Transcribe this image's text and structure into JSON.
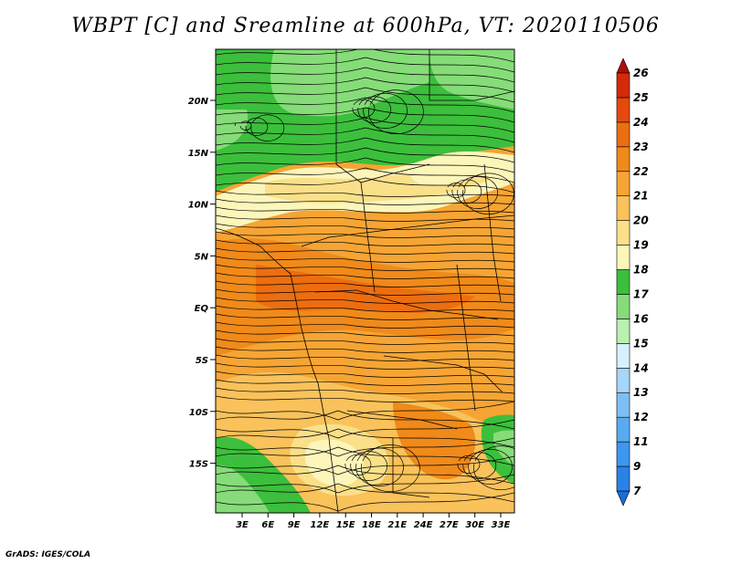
{
  "title": "WBPT [C] and Sreamline at 600hPa, VT: 2020110506",
  "footer": "GrADS: IGES/COLA",
  "map": {
    "lat_labels": [
      "20N",
      "15N",
      "10N",
      "5N",
      "EQ",
      "5S",
      "10S",
      "15S"
    ],
    "lon_labels": [
      "3E",
      "6E",
      "9E",
      "12E",
      "15E",
      "18E",
      "21E",
      "24E",
      "27E",
      "30E",
      "33E"
    ]
  },
  "colorbar": {
    "levels": [
      "7",
      "9",
      "11",
      "12",
      "13",
      "14",
      "15",
      "16",
      "17",
      "18",
      "19",
      "20",
      "21",
      "22",
      "23",
      "24",
      "25",
      "26"
    ],
    "colors": [
      "#1c6cd8",
      "#2a82e6",
      "#3d97ee",
      "#5aaaf2",
      "#7dbff5",
      "#a6d6f8",
      "#d8f0fb",
      "#baf0b0",
      "#86dc78",
      "#3cbf3c",
      "#fdf6ba",
      "#fbe08a",
      "#f9c25a",
      "#f6a534",
      "#f08a1a",
      "#ec6e10",
      "#e44a0c",
      "#d42a0a",
      "#b00d08"
    ]
  }
}
